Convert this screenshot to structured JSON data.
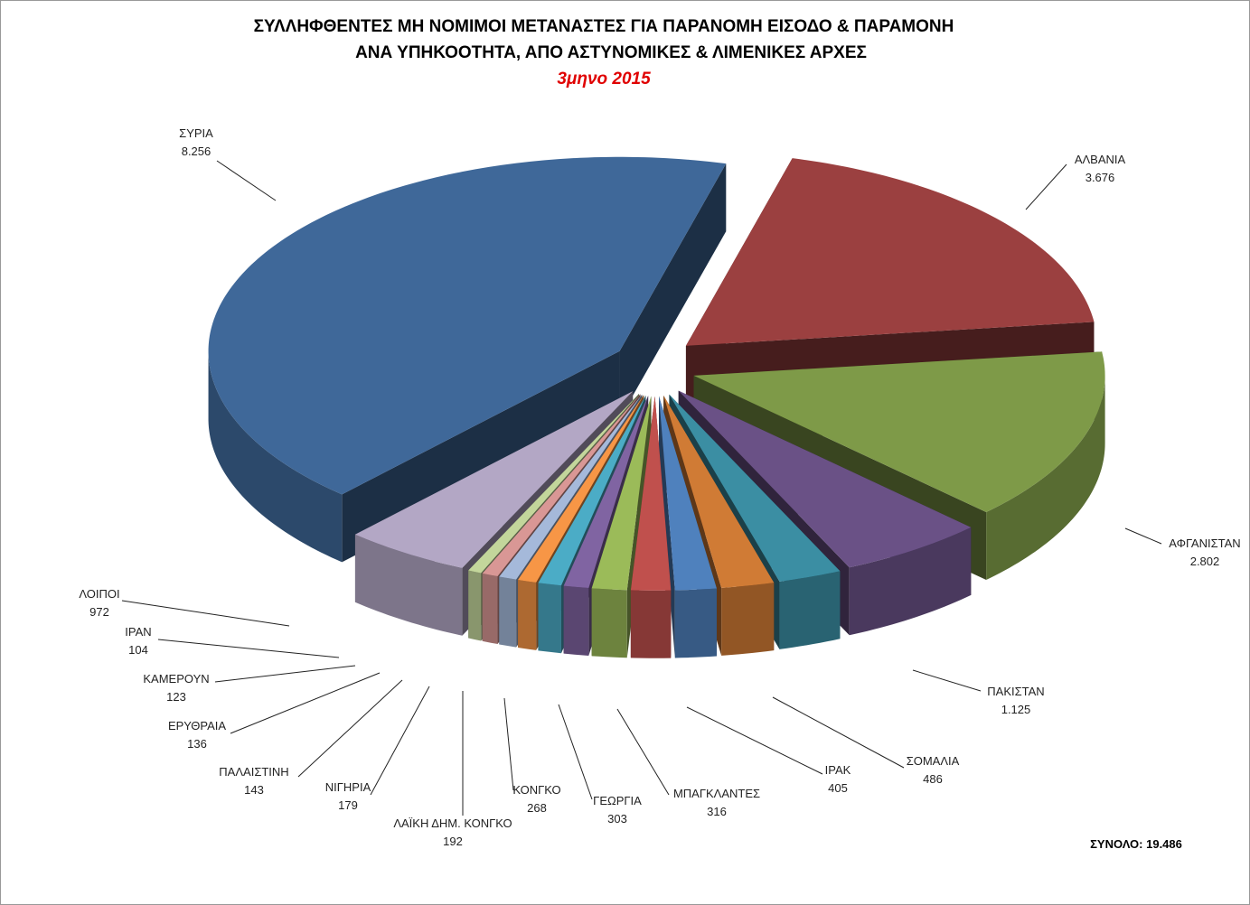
{
  "chart_data": {
    "type": "pie3d",
    "title": [
      "ΣΥΛΛΗΦΘΕΝΤΕΣ ΜΗ ΝΟΜΙΜΟΙ ΜΕΤΑΝΑΣΤΕΣ ΓΙΑ ΠΑΡΑΝΟΜΗ ΕΙΣΟΔΟ & ΠΑΡΑΜΟΝΗ",
      "ΑΝΑ ΥΠΗΚΟΟΤΗΤΑ,   ΑΠΟ ΑΣΤΥΝΟΜΙΚΕΣ & ΛΙΜΕΝΙΚΕΣ ΑΡΧΕΣ"
    ],
    "subtitle": "3μηνο 2015",
    "annotation": "ΣΥΝΟΛΟ: 19.486",
    "categories": [
      "ΑΛΒΑΝΙΑ",
      "ΑΦΓΑΝΙΣΤΑΝ",
      "ΠΑΚΙΣΤΑΝ",
      "ΣΟΜΑΛΙΑ",
      "ΙΡΑΚ",
      "ΜΠΑΓΚΛΑΝΤΕΣ",
      "ΓΕΩΡΓΙΑ",
      "ΚΟΝΓΚΟ",
      "ΛΑΪΚΗ ΔΗΜ. ΚΟΝΓΚΟ",
      "ΝΙΓΗΡΙΑ",
      "ΠΑΛΑΙΣΤΙΝΗ",
      "ΕΡΥΘΡΑΙΑ",
      "ΚΑΜΕΡΟΥΝ",
      "ΙΡΑΝ",
      "ΛΟΙΠΟΙ",
      "ΣΥΡΙΑ"
    ],
    "values": [
      3676,
      2802,
      1125,
      486,
      405,
      316,
      303,
      268,
      192,
      179,
      143,
      136,
      123,
      104,
      972,
      8256
    ],
    "value_labels": [
      "3.676",
      "2.802",
      "1.125",
      "486",
      "405",
      "316",
      "303",
      "268",
      "192",
      "179",
      "143",
      "136",
      "123",
      "104",
      "972",
      "8.256"
    ],
    "colors": [
      "#9b4040",
      "#7e9a48",
      "#6a5186",
      "#3b8ea3",
      "#d07b35",
      "#4f81bd",
      "#c0504d",
      "#9bbb59",
      "#8064a2",
      "#4bacc6",
      "#f79646",
      "#a5b9da",
      "#d99795",
      "#c3d69b",
      "#b3a7c5",
      "#3f6899"
    ]
  }
}
